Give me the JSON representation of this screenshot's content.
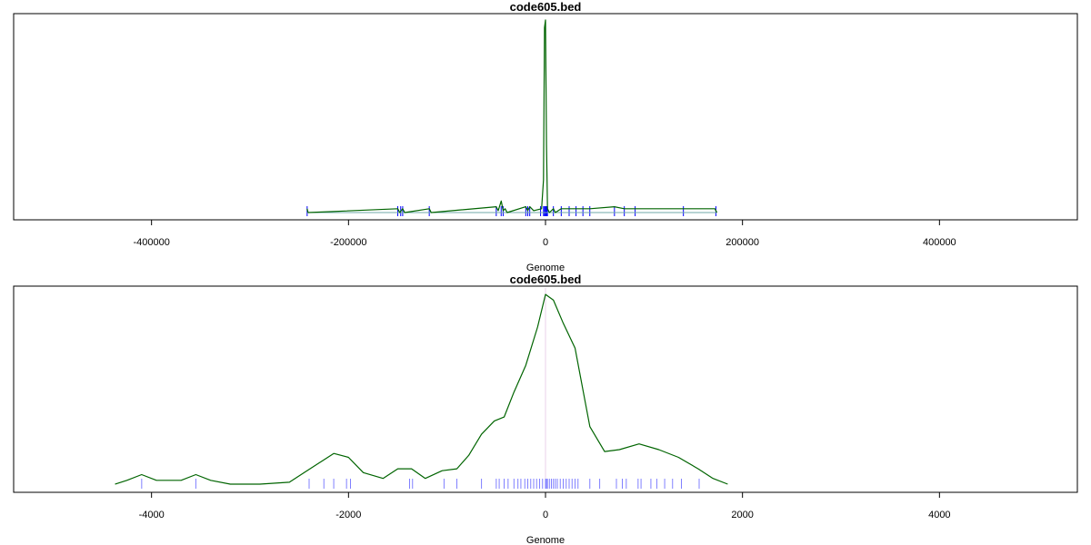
{
  "colors": {
    "density": "#006400",
    "rug_top": "#0000ff",
    "rug_bottom": "#8080ff",
    "baseline": "#6fa8a8",
    "center_line": "#e8d0e8",
    "axis": "#000000"
  },
  "chart_data": [
    {
      "type": "line",
      "title": "code605.bed",
      "xlabel": "Genome",
      "ylabel": "",
      "xlim": [
        -540000,
        540000
      ],
      "ylim": [
        0,
        1.05
      ],
      "xticks": [
        -400000,
        -200000,
        0,
        200000,
        400000
      ],
      "tick_labels": [
        "-400000",
        "-200000",
        "0",
        "200000",
        "400000"
      ],
      "series": [
        {
          "x": [
            -242000,
            -241000,
            -150000,
            -148000,
            -145000,
            -143000,
            -118000,
            -116000,
            -50000,
            -48000,
            -45000,
            -43000,
            -41000,
            -39000,
            -20000,
            -18000,
            -16000,
            -12000,
            -4000,
            -2000,
            -1000,
            0,
            1000,
            2000,
            4000,
            8000,
            10000,
            16000,
            24000,
            31000,
            38000,
            45000,
            70000,
            80000,
            91000,
            140000,
            172000,
            174000
          ],
          "y": [
            0.02,
            0.0,
            0.02,
            0.0,
            0.02,
            0.0,
            0.02,
            0.0,
            0.03,
            0.01,
            0.06,
            0.01,
            0.02,
            0.0,
            0.03,
            0.01,
            0.03,
            0.01,
            0.02,
            0.17,
            0.96,
            1.0,
            0.35,
            0.02,
            0.0,
            0.02,
            0.0,
            0.02,
            0.02,
            0.02,
            0.02,
            0.02,
            0.03,
            0.02,
            0.02,
            0.02,
            0.02,
            0.0
          ]
        }
      ],
      "rug": [
        -242000,
        -150000,
        -147000,
        -145000,
        -118000,
        -50000,
        -45000,
        -43000,
        -20000,
        -18000,
        -16000,
        -5000,
        -2000,
        -1000,
        0,
        500,
        1000,
        1500,
        2000,
        8000,
        16000,
        24000,
        31000,
        38000,
        45000,
        70000,
        80000,
        91000,
        140000,
        173000
      ]
    },
    {
      "type": "line",
      "title": "code605.bed",
      "xlabel": "Genome",
      "ylabel": "",
      "xlim": [
        -5400,
        5400
      ],
      "ylim": [
        0,
        1.05
      ],
      "xticks": [
        -4000,
        -2000,
        0,
        2000,
        4000
      ],
      "tick_labels": [
        "-4000",
        "-2000",
        "0",
        "2000",
        "4000"
      ],
      "series": [
        {
          "x": [
            -4370,
            -4250,
            -4100,
            -3950,
            -3700,
            -3550,
            -3400,
            -3200,
            -2900,
            -2600,
            -2450,
            -2300,
            -2150,
            -2000,
            -1850,
            -1650,
            -1500,
            -1360,
            -1220,
            -1050,
            -900,
            -780,
            -650,
            -520,
            -420,
            -320,
            -200,
            -80,
            0,
            80,
            180,
            300,
            450,
            600,
            750,
            950,
            1150,
            1350,
            1550,
            1700,
            1850
          ],
          "y": [
            0.0,
            0.02,
            0.05,
            0.02,
            0.02,
            0.05,
            0.02,
            0.0,
            0.0,
            0.01,
            0.06,
            0.11,
            0.16,
            0.14,
            0.06,
            0.03,
            0.08,
            0.08,
            0.03,
            0.07,
            0.08,
            0.15,
            0.26,
            0.33,
            0.35,
            0.48,
            0.62,
            0.82,
            0.99,
            0.96,
            0.84,
            0.71,
            0.3,
            0.17,
            0.18,
            0.21,
            0.18,
            0.14,
            0.08,
            0.03,
            0.0
          ]
        }
      ],
      "rug": [
        -4100,
        -3550,
        -2400,
        -2250,
        -2150,
        -2020,
        -1980,
        -1380,
        -1350,
        -1030,
        -900,
        -650,
        -500,
        -470,
        -420,
        -380,
        -320,
        -280,
        -250,
        -210,
        -180,
        -150,
        -120,
        -90,
        -60,
        -30,
        0,
        10,
        20,
        40,
        60,
        80,
        100,
        120,
        150,
        180,
        210,
        240,
        270,
        300,
        330,
        450,
        550,
        720,
        780,
        820,
        940,
        970,
        1070,
        1130,
        1210,
        1290,
        1380,
        1560
      ]
    }
  ]
}
